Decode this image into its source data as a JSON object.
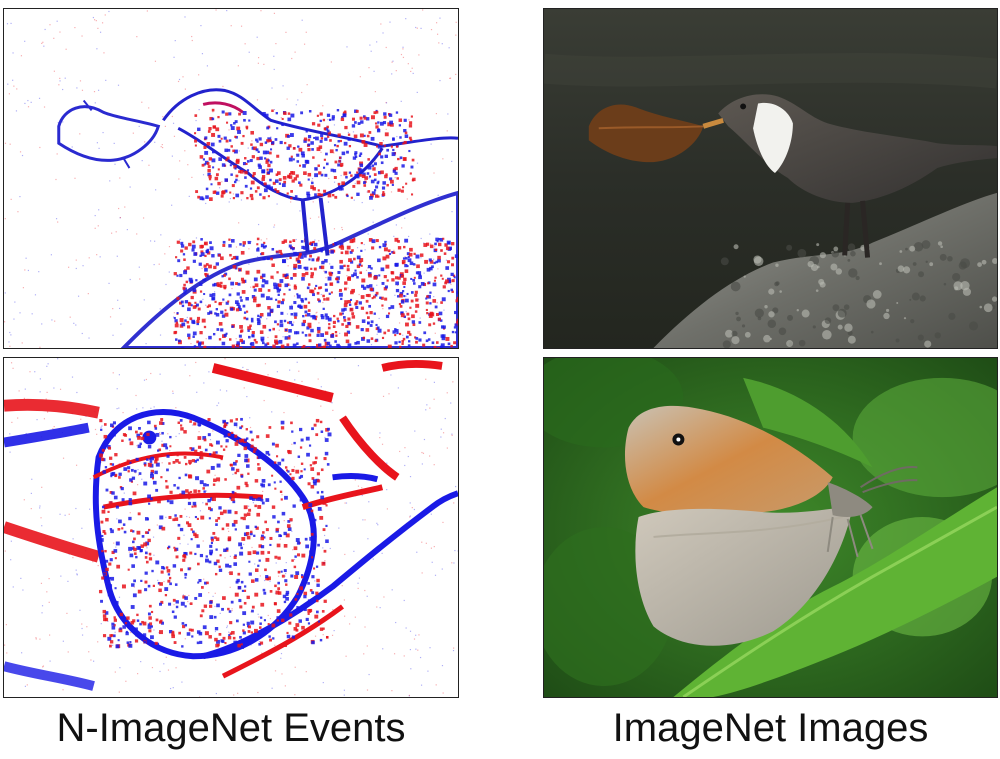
{
  "captions": {
    "left": "N-ImageNet Events",
    "right": "ImageNet Images"
  },
  "colors": {
    "positive_event": "#e8141c",
    "negative_event": "#1a1ae6",
    "event_background": "#ffffff"
  },
  "panels": {
    "event_bird": "event-frame-bird",
    "event_butterfly": "event-frame-butterfly",
    "image_bird": "photo-bird",
    "image_butterfly": "photo-butterfly"
  }
}
